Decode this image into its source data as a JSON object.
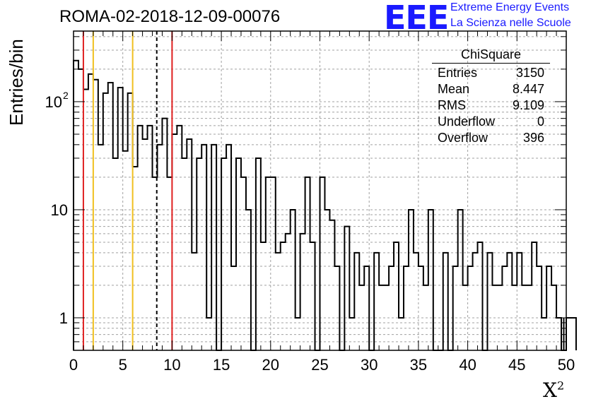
{
  "title": "ROMA-02-2018-12-09-00076",
  "logo": {
    "text": "EEE",
    "line1": "Extreme Energy Events",
    "line2": "La Scienza nelle Scuole",
    "color": "#1a1aff"
  },
  "stats_box": {
    "title": "ChiSquare",
    "rows": [
      {
        "label": "Entries",
        "value": "3150"
      },
      {
        "label": "Mean",
        "value": "8.447"
      },
      {
        "label": "RMS",
        "value": "9.109"
      },
      {
        "label": "Underflow",
        "value": "0"
      },
      {
        "label": "Overflow",
        "value": "396"
      }
    ]
  },
  "chart_data": {
    "type": "histogram",
    "ylabel": "Entries/bin",
    "xlabel_base": "X",
    "xlabel_sup": "2",
    "xlim": [
      0,
      50
    ],
    "ylim": [
      0.5,
      450
    ],
    "yscale": "log",
    "grid": true,
    "x_ticks": [
      "0",
      "5",
      "10",
      "15",
      "20",
      "25",
      "30",
      "35",
      "40",
      "45",
      "50"
    ],
    "y_ticks": [
      {
        "value": 1,
        "label": "1"
      },
      {
        "value": 10,
        "label": "10"
      },
      {
        "value": 100,
        "label": "10",
        "exp": "2"
      }
    ],
    "bin_width": 0.5,
    "counts": [
      240,
      200,
      130,
      180,
      160,
      40,
      120,
      150,
      30,
      135,
      35,
      120,
      25,
      60,
      45,
      60,
      20,
      40,
      70,
      20,
      50,
      60,
      30,
      45,
      4,
      30,
      40,
      1,
      40,
      0,
      30,
      40,
      3,
      30,
      20,
      10,
      0,
      30,
      5,
      20,
      20,
      4,
      5,
      6,
      10,
      1,
      6,
      20,
      5,
      0,
      20,
      10,
      8,
      3,
      0,
      7,
      1,
      4,
      2,
      3,
      0,
      4,
      2,
      2,
      3,
      5,
      1,
      3,
      10,
      4,
      3,
      2,
      10,
      0,
      0,
      4,
      0,
      3,
      10,
      2,
      3,
      4,
      5,
      0,
      4,
      2,
      2,
      3,
      4,
      2,
      4,
      2,
      2,
      5,
      3,
      1,
      3,
      2,
      1,
      0,
      1,
      1
    ],
    "overflow_tail": [
      1,
      1
    ],
    "vlines": [
      {
        "x": 1.0,
        "color": "#e02020",
        "style": "solid"
      },
      {
        "x": 2.0,
        "color": "#f0c020",
        "style": "solid"
      },
      {
        "x": 6.0,
        "color": "#f0c020",
        "style": "solid"
      },
      {
        "x": 8.447,
        "color": "#000000",
        "style": "dashed"
      },
      {
        "x": 10.0,
        "color": "#e02020",
        "style": "solid"
      }
    ]
  }
}
